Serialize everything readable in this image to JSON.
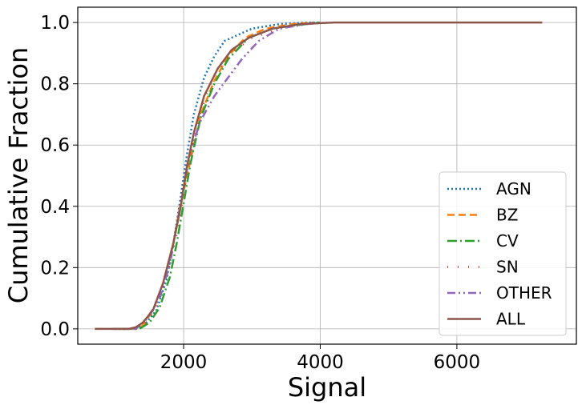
{
  "chart_data": {
    "type": "line",
    "title": "",
    "xlabel": "Signal",
    "ylabel": "Cumulative Fraction",
    "xlim": [
      450,
      7750
    ],
    "ylim": [
      -0.05,
      1.05
    ],
    "x_ticks": [
      2000,
      4000,
      6000
    ],
    "x_tick_labels": [
      "2000",
      "4000",
      "6000"
    ],
    "y_ticks": [
      0.0,
      0.2,
      0.4,
      0.6,
      0.8,
      1.0
    ],
    "y_tick_labels": [
      "0.0",
      "0.2",
      "0.4",
      "0.6",
      "0.8",
      "1.0"
    ],
    "grid": true,
    "legend_position": "lower-right",
    "series": [
      {
        "name": "AGN",
        "color": "#1f77b4",
        "dash": "2,3",
        "width": 2.5,
        "points": [
          [
            1000,
            0
          ],
          [
            1300,
            0.0
          ],
          [
            1450,
            0.02
          ],
          [
            1600,
            0.06
          ],
          [
            1750,
            0.16
          ],
          [
            1850,
            0.28
          ],
          [
            1950,
            0.42
          ],
          [
            2050,
            0.57
          ],
          [
            2150,
            0.7
          ],
          [
            2300,
            0.82
          ],
          [
            2450,
            0.89
          ],
          [
            2600,
            0.94
          ],
          [
            2800,
            0.96
          ],
          [
            3000,
            0.98
          ],
          [
            3400,
            0.995
          ],
          [
            3800,
            1.0
          ],
          [
            4000,
            1.0
          ]
        ]
      },
      {
        "name": "BZ",
        "color": "#ff7f0e",
        "dash": "9,5",
        "width": 2.5,
        "points": [
          [
            1050,
            0
          ],
          [
            1300,
            0.0
          ],
          [
            1400,
            0.01
          ],
          [
            1550,
            0.06
          ],
          [
            1700,
            0.15
          ],
          [
            1850,
            0.28
          ],
          [
            1950,
            0.4
          ],
          [
            2100,
            0.55
          ],
          [
            2250,
            0.7
          ],
          [
            2450,
            0.81
          ],
          [
            2650,
            0.89
          ],
          [
            2900,
            0.95
          ],
          [
            3200,
            0.98
          ],
          [
            3600,
            0.995
          ],
          [
            3900,
            1.0
          ]
        ]
      },
      {
        "name": "CV",
        "color": "#2ca02c",
        "dash": "12,4,2,4",
        "width": 2.5,
        "points": [
          [
            1100,
            0
          ],
          [
            1350,
            0.0
          ],
          [
            1500,
            0.02
          ],
          [
            1650,
            0.07
          ],
          [
            1800,
            0.17
          ],
          [
            1900,
            0.28
          ],
          [
            2000,
            0.41
          ],
          [
            2100,
            0.54
          ],
          [
            2250,
            0.69
          ],
          [
            2450,
            0.8
          ],
          [
            2650,
            0.88
          ],
          [
            2950,
            0.95
          ],
          [
            3300,
            0.98
          ],
          [
            3600,
            0.99
          ],
          [
            4000,
            1.0
          ]
        ]
      },
      {
        "name": "SN",
        "color": "#d62728",
        "dash": "1,12",
        "width": 2.5,
        "points": [
          [
            1000,
            0
          ],
          [
            1300,
            0.0
          ],
          [
            1450,
            0.02
          ],
          [
            1600,
            0.07
          ],
          [
            1750,
            0.17
          ],
          [
            1900,
            0.31
          ],
          [
            2000,
            0.44
          ],
          [
            2100,
            0.57
          ],
          [
            2250,
            0.71
          ],
          [
            2450,
            0.83
          ],
          [
            2700,
            0.9
          ],
          [
            3000,
            0.95
          ],
          [
            3400,
            0.98
          ],
          [
            3900,
            1.0
          ]
        ]
      },
      {
        "name": "OTHER",
        "color": "#9467bd",
        "dash": "10,4,2,4,2,4",
        "width": 2.5,
        "points": [
          [
            950,
            0
          ],
          [
            1300,
            0.0
          ],
          [
            1450,
            0.03
          ],
          [
            1650,
            0.1
          ],
          [
            1800,
            0.21
          ],
          [
            1900,
            0.34
          ],
          [
            2000,
            0.46
          ],
          [
            2100,
            0.58
          ],
          [
            2250,
            0.68
          ],
          [
            2450,
            0.76
          ],
          [
            2650,
            0.82
          ],
          [
            2850,
            0.88
          ],
          [
            3100,
            0.94
          ],
          [
            3400,
            0.98
          ],
          [
            3800,
            0.995
          ],
          [
            4100,
            1.0
          ]
        ]
      },
      {
        "name": "ALL",
        "color": "#8c564b",
        "dash": "",
        "width": 2.5,
        "points": [
          [
            700,
            0
          ],
          [
            1200,
            0.0
          ],
          [
            1300,
            0.005
          ],
          [
            1400,
            0.02
          ],
          [
            1550,
            0.06
          ],
          [
            1700,
            0.15
          ],
          [
            1850,
            0.28
          ],
          [
            1950,
            0.39
          ],
          [
            2050,
            0.53
          ],
          [
            2150,
            0.64
          ],
          [
            2300,
            0.76
          ],
          [
            2500,
            0.85
          ],
          [
            2700,
            0.91
          ],
          [
            2950,
            0.95
          ],
          [
            3300,
            0.98
          ],
          [
            3700,
            0.995
          ],
          [
            4200,
            1.0
          ],
          [
            5000,
            1.0
          ],
          [
            7250,
            1.0
          ]
        ]
      }
    ]
  }
}
